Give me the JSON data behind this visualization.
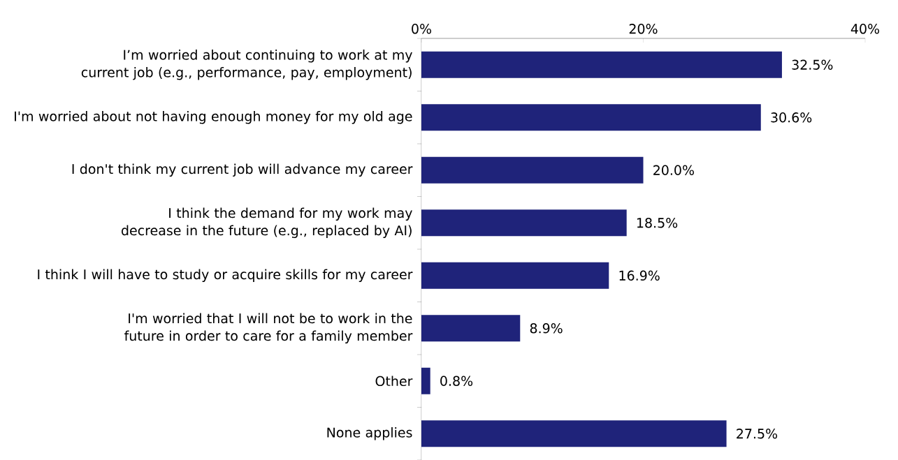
{
  "chart_data": {
    "type": "bar",
    "orientation": "horizontal",
    "categories": [
      "I’m worried about continuing to work at my current job (e.g., performance, pay, employment)",
      "I'm worried about not having enough money for my old age",
      "I don't think my current job will advance my career",
      "I think the demand for my work may decrease in the future (e.g., replaced by AI)",
      "I think I will have to study or acquire skills for my career",
      "I'm worried that I will not be to work in the future in order to care for a family member",
      "Other",
      "None applies"
    ],
    "values": [
      32.5,
      30.6,
      20.0,
      18.5,
      16.9,
      8.9,
      0.8,
      27.5
    ],
    "value_labels": [
      "32.5%",
      "30.6%",
      "20.0%",
      "18.5%",
      "16.9%",
      "8.9%",
      "0.8%",
      "27.5%"
    ],
    "color": "#1f237a",
    "xlim": [
      0,
      40
    ],
    "xticks": [
      {
        "value": 0,
        "label": "0%"
      },
      {
        "value": 20,
        "label": "20%"
      },
      {
        "value": 40,
        "label": "40%"
      }
    ]
  }
}
